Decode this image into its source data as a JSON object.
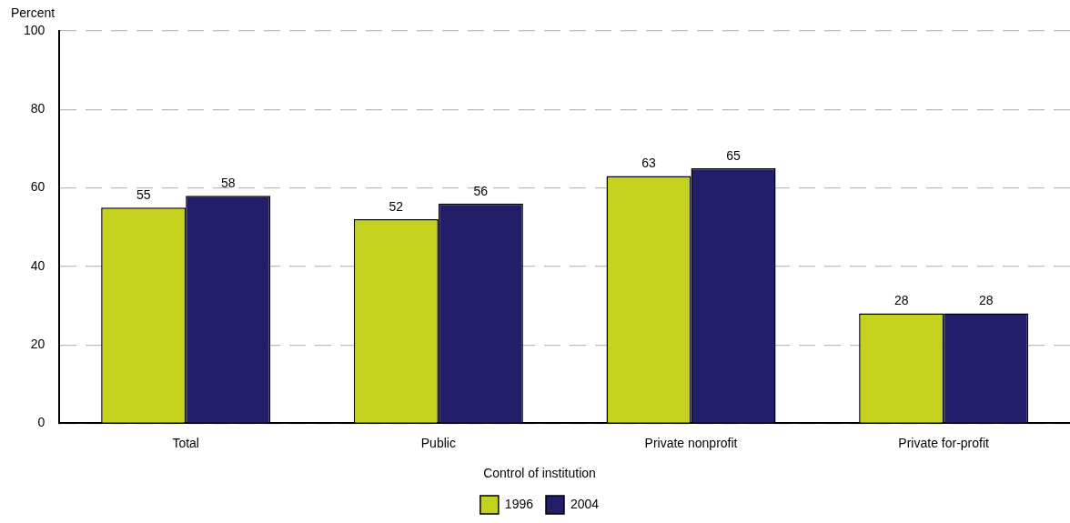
{
  "chart_data": {
    "type": "bar",
    "ylabel": "Percent",
    "legend_title": "Control of institution",
    "categories": [
      "Total",
      "Public",
      "Private nonprofit",
      "Private for-profit"
    ],
    "series": [
      {
        "name": "1996",
        "color": "#c4d21e",
        "values": [
          55,
          52,
          63,
          28
        ]
      },
      {
        "name": "2004",
        "color": "#221e6a",
        "values": [
          58,
          56,
          65,
          28
        ]
      }
    ],
    "ylim": [
      0,
      100
    ],
    "yticks": [
      0,
      20,
      40,
      60,
      80,
      100
    ],
    "grid": "y",
    "legend": "bottom",
    "data_labels": true
  }
}
